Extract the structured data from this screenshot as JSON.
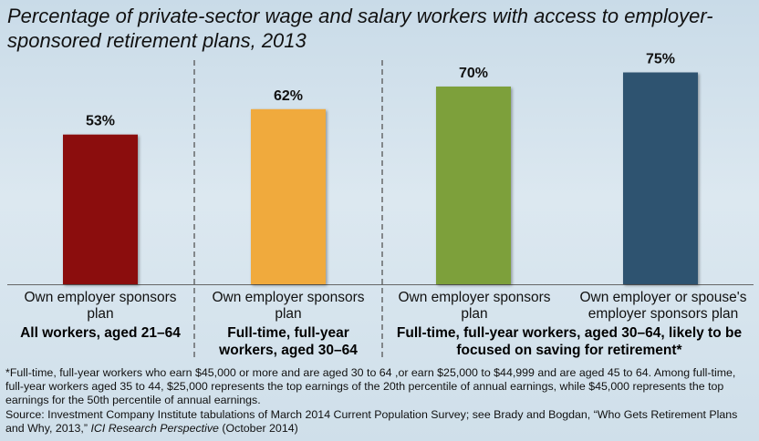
{
  "title": "Percentage of private-sector wage and salary workers with access to employer-sponsored retirement plans, 2013",
  "chart_data": {
    "type": "bar",
    "categories": [
      "Own employer sponsors plan",
      "Own employer sponsors plan",
      "Own employer sponsors plan",
      "Own employer or spouse's employer sponsors plan"
    ],
    "values": [
      53,
      62,
      70,
      75
    ],
    "value_labels": [
      "53%",
      "62%",
      "70%",
      "75%"
    ],
    "colors": [
      "#8b0a0a",
      "#f0aa3c",
      "#7da03a",
      "#2e5270"
    ],
    "ylim": [
      0,
      100
    ],
    "grid": false,
    "group_labels": [
      "All workers, aged 21–64",
      "Full-time, full-year workers, aged 30–64",
      "Full-time, full-year workers, aged 30–64, likely to be focused on saving for retirement*"
    ]
  },
  "footnote": "*Full-time, full-year workers who earn $45,000 or more and are aged 30 to 64 ,or earn $25,000 to $44,999 and are aged 45 to 64. Among full-time, full-year workers aged 35 to 44, $25,000 represents the top earnings of the 20th percentile of annual earnings, while $45,000 represents the top earnings for the 50th percentile of annual earnings.",
  "source_prefix": "Source: Investment Company Institute tabulations of March 2014 Current Population Survey; see Brady and Bogdan, “Who Gets Retirement Plans and Why, 2013,”",
  "source_publication": "ICI Research Perspective",
  "source_suffix": "(October 2014)"
}
